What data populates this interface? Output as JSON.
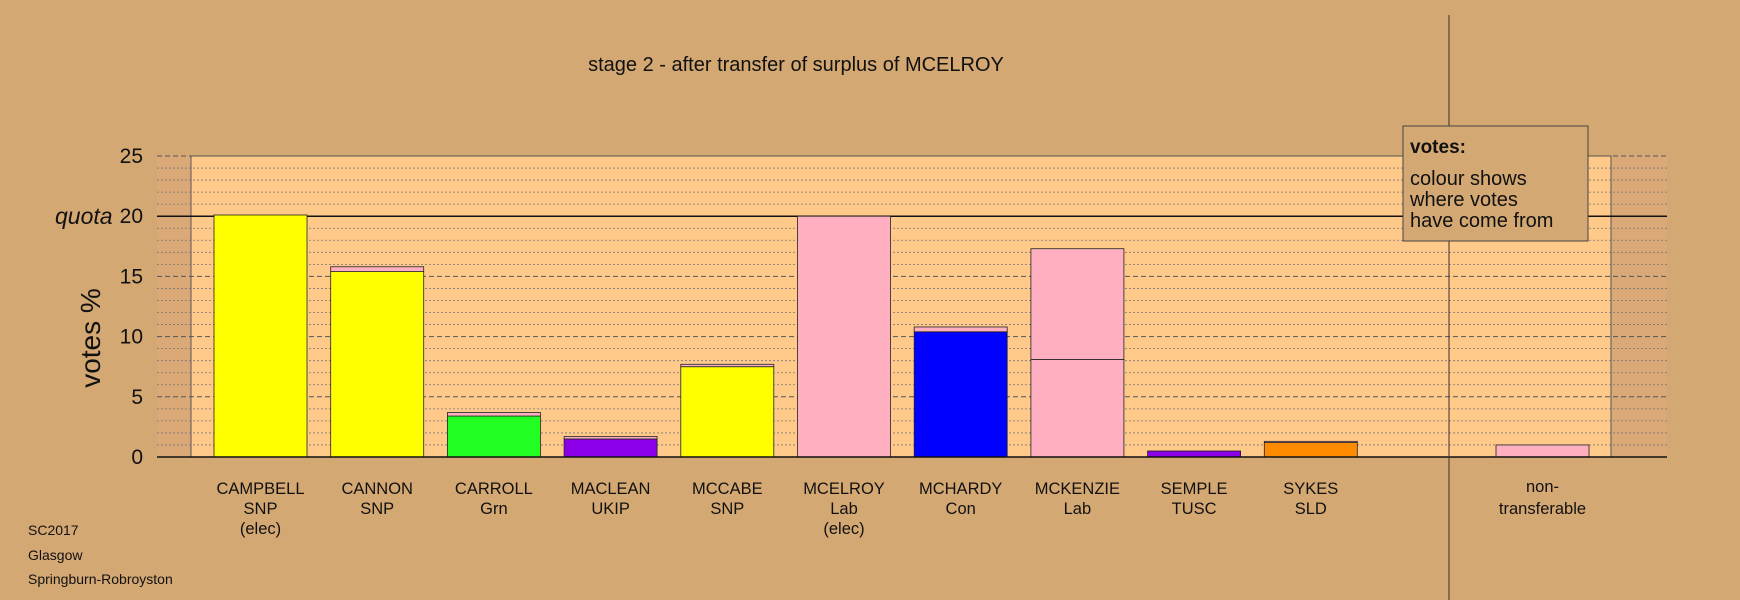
{
  "chart_data": {
    "type": "bar",
    "title": "stage 2 - after transfer of surplus of MCELROY",
    "ylabel": "votes %",
    "ylim": [
      0,
      25
    ],
    "yticks": [
      0,
      5,
      10,
      15,
      20,
      25
    ],
    "quota": {
      "value": 20,
      "label": "quota"
    },
    "legend": {
      "heading": "votes:",
      "lines": [
        "colour shows",
        "where votes",
        "have come from"
      ],
      "placement": "top-right"
    },
    "bars": [
      {
        "name": "CAMPBELL",
        "party": "SNP",
        "status": "(elec)",
        "segments": [
          {
            "value": 20.1,
            "color": "#ffff00"
          }
        ]
      },
      {
        "name": "CANNON",
        "party": "SNP",
        "status": "",
        "segments": [
          {
            "value": 15.4,
            "color": "#ffff00"
          },
          {
            "value": 0.4,
            "color": "#ffb0c0"
          }
        ]
      },
      {
        "name": "CARROLL",
        "party": "Grn",
        "status": "",
        "segments": [
          {
            "value": 3.4,
            "color": "#22ff22"
          },
          {
            "value": 0.3,
            "color": "#ffb0c0"
          }
        ]
      },
      {
        "name": "MACLEAN",
        "party": "UKIP",
        "status": "",
        "segments": [
          {
            "value": 1.5,
            "color": "#8b00e8"
          },
          {
            "value": 0.2,
            "color": "#ffb0c0"
          }
        ]
      },
      {
        "name": "MCCABE",
        "party": "SNP",
        "status": "",
        "segments": [
          {
            "value": 7.5,
            "color": "#ffff00"
          },
          {
            "value": 0.2,
            "color": "#ffb0c0"
          }
        ]
      },
      {
        "name": "MCELROY",
        "party": "Lab",
        "status": "(elec)",
        "segments": [
          {
            "value": 20.0,
            "color": "#ffb0c0"
          }
        ]
      },
      {
        "name": "MCHARDY",
        "party": "Con",
        "status": "",
        "segments": [
          {
            "value": 10.4,
            "color": "#0000ff"
          },
          {
            "value": 0.4,
            "color": "#ffb0c0"
          }
        ]
      },
      {
        "name": "MCKENZIE",
        "party": "Lab",
        "status": "",
        "segments": [
          {
            "value": 8.1,
            "color": "#ffb0c0"
          },
          {
            "value": 9.2,
            "color": "#ffb0c0"
          }
        ]
      },
      {
        "name": "SEMPLE",
        "party": "TUSC",
        "status": "",
        "segments": [
          {
            "value": 0.5,
            "color": "#8b00e8"
          }
        ]
      },
      {
        "name": "SYKES",
        "party": "SLD",
        "status": "",
        "segments": [
          {
            "value": 1.2,
            "color": "#ff8c00"
          },
          {
            "value": 0.1,
            "color": "#ffb0c0"
          }
        ]
      }
    ],
    "nontransferable": {
      "label_lines": [
        "non-",
        "transferable"
      ],
      "value": 1.0,
      "color": "#ffb0c0"
    },
    "colors": {
      "background": "#d4a873",
      "plot_band": "#ffc98a",
      "outer_band": "#dba978"
    }
  },
  "footer": {
    "lines": [
      "SC2017",
      "Glasgow",
      "Springburn-Robroyston"
    ]
  }
}
